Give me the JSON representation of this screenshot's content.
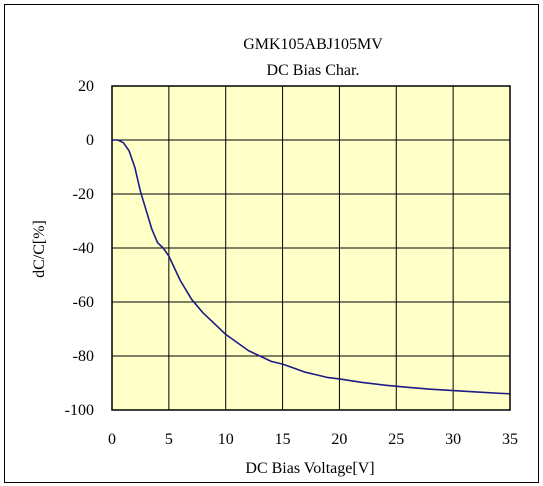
{
  "chart_data": {
    "type": "line",
    "title": "GMK105ABJ105MV",
    "subtitle": "DC Bias Char.",
    "xlabel": "DC Bias Voltage[V]",
    "ylabel": "dC/C[%]",
    "xlim": [
      0,
      35
    ],
    "ylim": [
      -100,
      20
    ],
    "xticks": [
      "0",
      "5",
      "10",
      "15",
      "20",
      "25",
      "30",
      "35"
    ],
    "yticks": [
      "20",
      "0",
      "-20",
      "-40",
      "-60",
      "-80",
      "-100"
    ],
    "grid": true,
    "legend": "none",
    "colors": {
      "plot_background": "#ffffc8",
      "grid": "#000000",
      "line": "#1c1c86",
      "frame": "#000000"
    },
    "series": [
      {
        "x": [
          0,
          0.5,
          1,
          1.5,
          2,
          2.5,
          3,
          3.5,
          4,
          4.5,
          5,
          6,
          7,
          8,
          9,
          10,
          11,
          12,
          13,
          14,
          15,
          16,
          17,
          18,
          19,
          20,
          22,
          24,
          26,
          28,
          30,
          32,
          34,
          35
        ],
        "y": [
          0,
          0,
          -1,
          -4,
          -10,
          -19,
          -26,
          -33,
          -38,
          -40,
          -43,
          -52,
          -59,
          -64,
          -68,
          -72,
          -75,
          -78,
          -80,
          -82,
          -83,
          -84.5,
          -86,
          -87,
          -88,
          -88.5,
          -89.8,
          -90.8,
          -91.6,
          -92.3,
          -92.8,
          -93.3,
          -93.8,
          -94
        ]
      }
    ]
  }
}
